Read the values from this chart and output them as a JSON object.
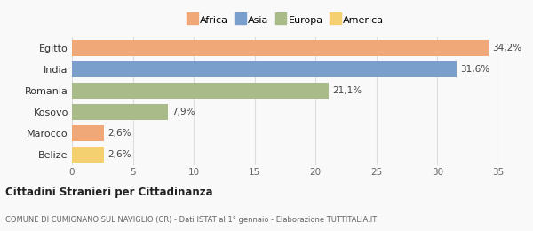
{
  "categories": [
    "Egitto",
    "India",
    "Romania",
    "Kosovo",
    "Marocco",
    "Belize"
  ],
  "values": [
    34.2,
    31.6,
    21.1,
    7.9,
    2.6,
    2.6
  ],
  "labels": [
    "34,2%",
    "31,6%",
    "21,1%",
    "7,9%",
    "2,6%",
    "2,6%"
  ],
  "colors": [
    "#F0A878",
    "#7B9FCC",
    "#A8BB88",
    "#A8BB88",
    "#F0A878",
    "#F5D070"
  ],
  "legend_items": [
    {
      "label": "Africa",
      "color": "#F0A878"
    },
    {
      "label": "Asia",
      "color": "#7B9FCC"
    },
    {
      "label": "Europa",
      "color": "#A8BB88"
    },
    {
      "label": "America",
      "color": "#F5D070"
    }
  ],
  "xlim": [
    0,
    35
  ],
  "xticks": [
    0,
    5,
    10,
    15,
    20,
    25,
    30,
    35
  ],
  "title": "Cittadini Stranieri per Cittadinanza",
  "subtitle": "COMUNE DI CUMIGNANO SUL NAVIGLIO (CR) - Dati ISTAT al 1° gennaio - Elaborazione TUTTITALIA.IT",
  "background_color": "#f9f9f9",
  "bar_height": 0.75,
  "grid_color": "#dddddd"
}
